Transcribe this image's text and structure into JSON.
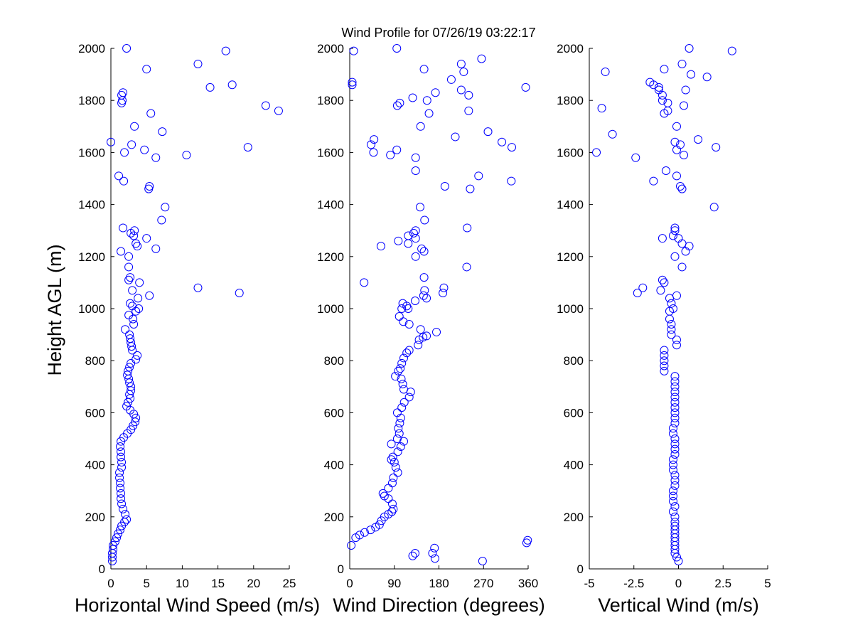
{
  "title": "Wind Profile for  07/26/19 03:22:17",
  "ylabel": "Height AGL (m)",
  "chart_data": [
    {
      "type": "scatter",
      "xlabel": "Horizontal Wind Speed (m/s)",
      "ylabel": "Height AGL (m)",
      "xlim": [
        0,
        25
      ],
      "ylim": [
        0,
        2000
      ],
      "xticks": [
        0,
        5,
        10,
        15,
        20,
        25
      ],
      "xtick_labels": [
        "0",
        "5",
        "10",
        "15",
        "20",
        "25"
      ],
      "yticks": [
        0,
        200,
        400,
        600,
        800,
        1000,
        1200,
        1400,
        1600,
        1800,
        2000
      ],
      "ytick_labels": [
        "0",
        "200",
        "400",
        "600",
        "800",
        "1000",
        "1200",
        "1400",
        "1600",
        "1800",
        "2000"
      ],
      "marker_color": "#0000ff",
      "points": [
        [
          0.2,
          30
        ],
        [
          0.2,
          45
        ],
        [
          0.2,
          60
        ],
        [
          0.3,
          75
        ],
        [
          0.3,
          90
        ],
        [
          0.6,
          105
        ],
        [
          0.8,
          120
        ],
        [
          1.0,
          135
        ],
        [
          1.3,
          150
        ],
        [
          1.5,
          165
        ],
        [
          1.9,
          180
        ],
        [
          2.2,
          190
        ],
        [
          2.0,
          210
        ],
        [
          1.7,
          230
        ],
        [
          1.5,
          250
        ],
        [
          1.4,
          270
        ],
        [
          1.4,
          290
        ],
        [
          1.3,
          310
        ],
        [
          1.3,
          330
        ],
        [
          1.2,
          350
        ],
        [
          1.2,
          370
        ],
        [
          1.5,
          390
        ],
        [
          1.5,
          410
        ],
        [
          1.4,
          430
        ],
        [
          1.4,
          450
        ],
        [
          1.3,
          470
        ],
        [
          1.4,
          490
        ],
        [
          1.8,
          505
        ],
        [
          2.3,
          520
        ],
        [
          2.8,
          535
        ],
        [
          3.1,
          550
        ],
        [
          3.4,
          565
        ],
        [
          3.5,
          580
        ],
        [
          3.2,
          595
        ],
        [
          2.7,
          610
        ],
        [
          2.2,
          625
        ],
        [
          2.4,
          640
        ],
        [
          2.7,
          655
        ],
        [
          2.6,
          670
        ],
        [
          2.8,
          685
        ],
        [
          2.8,
          700
        ],
        [
          2.6,
          715
        ],
        [
          2.5,
          730
        ],
        [
          2.3,
          745
        ],
        [
          2.4,
          760
        ],
        [
          2.6,
          775
        ],
        [
          2.8,
          790
        ],
        [
          3.5,
          805
        ],
        [
          3.7,
          820
        ],
        [
          3.0,
          840
        ],
        [
          2.9,
          855
        ],
        [
          2.8,
          870
        ],
        [
          2.7,
          885
        ],
        [
          2.6,
          900
        ],
        [
          2.0,
          920
        ],
        [
          3.2,
          940
        ],
        [
          3.1,
          960
        ],
        [
          2.5,
          975
        ],
        [
          3.5,
          990
        ],
        [
          3.9,
          1000
        ],
        [
          3.0,
          1010
        ],
        [
          2.7,
          1020
        ],
        [
          3.8,
          1040
        ],
        [
          5.4,
          1050
        ],
        [
          3.0,
          1070
        ],
        [
          4.0,
          1100
        ],
        [
          2.5,
          1110
        ],
        [
          2.7,
          1120
        ],
        [
          2.5,
          1160
        ],
        [
          2.5,
          1200
        ],
        [
          1.4,
          1220
        ],
        [
          6.3,
          1230
        ],
        [
          3.7,
          1240
        ],
        [
          3.5,
          1250
        ],
        [
          5.0,
          1270
        ],
        [
          3.2,
          1280
        ],
        [
          2.8,
          1290
        ],
        [
          3.3,
          1300
        ],
        [
          1.7,
          1310
        ],
        [
          7.1,
          1340
        ],
        [
          7.6,
          1390
        ],
        [
          5.3,
          1460
        ],
        [
          5.4,
          1470
        ],
        [
          1.8,
          1490
        ],
        [
          1.1,
          1510
        ],
        [
          6.3,
          1580
        ],
        [
          10.6,
          1590
        ],
        [
          1.9,
          1600
        ],
        [
          4.7,
          1610
        ],
        [
          2.9,
          1630
        ],
        [
          0.0,
          1640
        ],
        [
          7.2,
          1680
        ],
        [
          3.3,
          1700
        ],
        [
          5.6,
          1750
        ],
        [
          1.5,
          1790
        ],
        [
          1.6,
          1800
        ],
        [
          1.5,
          1820
        ],
        [
          1.7,
          1830
        ],
        [
          5.0,
          1920
        ],
        [
          2.2,
          2000
        ],
        [
          12.2,
          1080
        ],
        [
          18.0,
          1060
        ],
        [
          19.2,
          1620
        ],
        [
          21.7,
          1780
        ],
        [
          23.5,
          1760
        ],
        [
          13.9,
          1850
        ],
        [
          17.0,
          1860
        ],
        [
          12.2,
          1940
        ],
        [
          16.1,
          1990
        ]
      ]
    },
    {
      "type": "scatter",
      "xlabel": "Wind Direction (degrees)",
      "xlim": [
        0,
        360
      ],
      "ylim": [
        0,
        2000
      ],
      "xticks": [
        0,
        90,
        180,
        270,
        360
      ],
      "xtick_labels": [
        "0",
        "90",
        "180",
        "270",
        "360"
      ],
      "yticks": [
        0,
        200,
        400,
        600,
        800,
        1000,
        1200,
        1400,
        1600,
        1800,
        2000
      ],
      "ytick_labels": [
        "0",
        "200",
        "400",
        "600",
        "800",
        "1000",
        "1200",
        "1400",
        "1600",
        "1800",
        "2000"
      ],
      "marker_color": "#0000ff",
      "points": [
        [
          3,
          90
        ],
        [
          12,
          120
        ],
        [
          20,
          130
        ],
        [
          30,
          140
        ],
        [
          42,
          150
        ],
        [
          52,
          160
        ],
        [
          60,
          170
        ],
        [
          64,
          185
        ],
        [
          70,
          200
        ],
        [
          78,
          210
        ],
        [
          85,
          220
        ],
        [
          88,
          230
        ],
        [
          86,
          250
        ],
        [
          78,
          270
        ],
        [
          70,
          280
        ],
        [
          67,
          290
        ],
        [
          78,
          310
        ],
        [
          86,
          330
        ],
        [
          88,
          350
        ],
        [
          97,
          370
        ],
        [
          93,
          390
        ],
        [
          90,
          410
        ],
        [
          84,
          420
        ],
        [
          87,
          430
        ],
        [
          97,
          450
        ],
        [
          103,
          470
        ],
        [
          84,
          480
        ],
        [
          109,
          490
        ],
        [
          96,
          500
        ],
        [
          100,
          520
        ],
        [
          98,
          540
        ],
        [
          101,
          560
        ],
        [
          103,
          580
        ],
        [
          96,
          600
        ],
        [
          105,
          620
        ],
        [
          110,
          640
        ],
        [
          120,
          660
        ],
        [
          123,
          680
        ],
        [
          109,
          690
        ],
        [
          107,
          710
        ],
        [
          104,
          730
        ],
        [
          92,
          740
        ],
        [
          98,
          760
        ],
        [
          102,
          770
        ],
        [
          105,
          790
        ],
        [
          109,
          810
        ],
        [
          115,
          830
        ],
        [
          120,
          840
        ],
        [
          138,
          860
        ],
        [
          140,
          880
        ],
        [
          148,
          890
        ],
        [
          155,
          895
        ],
        [
          175,
          910
        ],
        [
          143,
          920
        ],
        [
          120,
          940
        ],
        [
          108,
          950
        ],
        [
          100,
          970
        ],
        [
          132,
          1030
        ],
        [
          105,
          1000
        ],
        [
          115,
          1010
        ],
        [
          107,
          1020
        ],
        [
          118,
          1000
        ],
        [
          155,
          1040
        ],
        [
          149,
          1050
        ],
        [
          151,
          1070
        ],
        [
          188,
          1060
        ],
        [
          190,
          1080
        ],
        [
          150,
          1120
        ],
        [
          29,
          1100
        ],
        [
          236,
          1160
        ],
        [
          133,
          1200
        ],
        [
          150,
          1220
        ],
        [
          145,
          1230
        ],
        [
          63,
          1240
        ],
        [
          118,
          1250
        ],
        [
          98,
          1260
        ],
        [
          133,
          1270
        ],
        [
          118,
          1280
        ],
        [
          129,
          1290
        ],
        [
          133,
          1300
        ],
        [
          237,
          1310
        ],
        [
          151,
          1340
        ],
        [
          142,
          1390
        ],
        [
          192,
          1470
        ],
        [
          243,
          1460
        ],
        [
          260,
          1510
        ],
        [
          326,
          1490
        ],
        [
          133,
          1530
        ],
        [
          133,
          1580
        ],
        [
          82,
          1590
        ],
        [
          95,
          1610
        ],
        [
          48,
          1600
        ],
        [
          43,
          1630
        ],
        [
          49,
          1650
        ],
        [
          213,
          1660
        ],
        [
          307,
          1640
        ],
        [
          327,
          1620
        ],
        [
          279,
          1680
        ],
        [
          143,
          1700
        ],
        [
          160,
          1750
        ],
        [
          240,
          1760
        ],
        [
          96,
          1780
        ],
        [
          101,
          1790
        ],
        [
          156,
          1800
        ],
        [
          127,
          1810
        ],
        [
          173,
          1830
        ],
        [
          225,
          1840
        ],
        [
          240,
          1820
        ],
        [
          355,
          1850
        ],
        [
          5,
          1860
        ],
        [
          5,
          1870
        ],
        [
          205,
          1880
        ],
        [
          230,
          1910
        ],
        [
          150,
          1920
        ],
        [
          225,
          1940
        ],
        [
          266,
          1960
        ],
        [
          95,
          2000
        ],
        [
          8,
          1990
        ],
        [
          127,
          50
        ],
        [
          132,
          60
        ],
        [
          172,
          40
        ],
        [
          171,
          80
        ],
        [
          167,
          60
        ],
        [
          268,
          30
        ],
        [
          357,
          100
        ],
        [
          359,
          110
        ]
      ]
    },
    {
      "type": "scatter",
      "xlabel": "Vertical Wind (m/s)",
      "xlim": [
        -5,
        5
      ],
      "ylim": [
        0,
        2000
      ],
      "xticks": [
        -5,
        -2.5,
        0,
        2.5,
        5
      ],
      "xtick_labels": [
        "-5",
        "-2.5",
        "0",
        "2.5",
        "5"
      ],
      "yticks": [
        0,
        200,
        400,
        600,
        800,
        1000,
        1200,
        1400,
        1600,
        1800,
        2000
      ],
      "ytick_labels": [
        "0",
        "200",
        "400",
        "600",
        "800",
        "1000",
        "1200",
        "1400",
        "1600",
        "1800",
        "2000"
      ],
      "marker_color": "#0000ff",
      "points": [
        [
          0.0,
          30
        ],
        [
          -0.1,
          45
        ],
        [
          -0.2,
          60
        ],
        [
          -0.2,
          75
        ],
        [
          -0.2,
          90
        ],
        [
          -0.2,
          105
        ],
        [
          -0.2,
          120
        ],
        [
          -0.2,
          135
        ],
        [
          -0.2,
          150
        ],
        [
          -0.2,
          165
        ],
        [
          -0.2,
          180
        ],
        [
          -0.2,
          200
        ],
        [
          -0.3,
          220
        ],
        [
          -0.2,
          240
        ],
        [
          -0.3,
          260
        ],
        [
          -0.3,
          280
        ],
        [
          -0.3,
          300
        ],
        [
          -0.2,
          320
        ],
        [
          -0.2,
          340
        ],
        [
          -0.2,
          360
        ],
        [
          -0.3,
          380
        ],
        [
          -0.3,
          400
        ],
        [
          -0.3,
          420
        ],
        [
          -0.2,
          440
        ],
        [
          -0.2,
          460
        ],
        [
          -0.2,
          480
        ],
        [
          -0.2,
          500
        ],
        [
          -0.3,
          520
        ],
        [
          -0.3,
          540
        ],
        [
          -0.2,
          560
        ],
        [
          -0.2,
          580
        ],
        [
          -0.2,
          600
        ],
        [
          -0.2,
          620
        ],
        [
          -0.2,
          640
        ],
        [
          -0.2,
          660
        ],
        [
          -0.2,
          680
        ],
        [
          -0.2,
          700
        ],
        [
          -0.2,
          720
        ],
        [
          -0.2,
          740
        ],
        [
          -0.8,
          760
        ],
        [
          -0.8,
          780
        ],
        [
          -0.8,
          800
        ],
        [
          -0.8,
          820
        ],
        [
          -0.8,
          840
        ],
        [
          -0.1,
          860
        ],
        [
          -0.1,
          880
        ],
        [
          -0.4,
          900
        ],
        [
          -0.4,
          920
        ],
        [
          -0.4,
          940
        ],
        [
          -0.5,
          960
        ],
        [
          -0.5,
          990
        ],
        [
          -0.3,
          1000
        ],
        [
          -0.4,
          1020
        ],
        [
          -0.5,
          1040
        ],
        [
          -0.1,
          1050
        ],
        [
          -1.0,
          1070
        ],
        [
          -2.3,
          1060
        ],
        [
          -2.0,
          1080
        ],
        [
          -0.8,
          1100
        ],
        [
          -0.9,
          1110
        ],
        [
          0.2,
          1160
        ],
        [
          -0.2,
          1200
        ],
        [
          0.4,
          1220
        ],
        [
          0.6,
          1240
        ],
        [
          0.2,
          1250
        ],
        [
          0.0,
          1270
        ],
        [
          -0.9,
          1270
        ],
        [
          -0.3,
          1280
        ],
        [
          -0.2,
          1300
        ],
        [
          -0.2,
          1310
        ],
        [
          2.0,
          1390
        ],
        [
          0.2,
          1460
        ],
        [
          0.1,
          1470
        ],
        [
          -1.4,
          1490
        ],
        [
          -0.1,
          1510
        ],
        [
          -0.7,
          1530
        ],
        [
          -2.4,
          1580
        ],
        [
          0.3,
          1590
        ],
        [
          -4.6,
          1600
        ],
        [
          -0.1,
          1610
        ],
        [
          0.1,
          1630
        ],
        [
          -0.2,
          1640
        ],
        [
          2.1,
          1620
        ],
        [
          1.1,
          1650
        ],
        [
          -3.7,
          1670
        ],
        [
          -0.1,
          1700
        ],
        [
          -0.8,
          1750
        ],
        [
          -0.6,
          1760
        ],
        [
          0.3,
          1780
        ],
        [
          -4.3,
          1770
        ],
        [
          -0.6,
          1790
        ],
        [
          -0.9,
          1800
        ],
        [
          -0.9,
          1820
        ],
        [
          -1.1,
          1840
        ],
        [
          0.4,
          1840
        ],
        [
          -1.1,
          1850
        ],
        [
          -1.4,
          1860
        ],
        [
          -1.6,
          1870
        ],
        [
          1.6,
          1890
        ],
        [
          -0.8,
          1920
        ],
        [
          0.7,
          1900
        ],
        [
          -4.1,
          1910
        ],
        [
          0.2,
          1940
        ],
        [
          0.6,
          2000
        ],
        [
          3.0,
          1990
        ]
      ]
    }
  ]
}
